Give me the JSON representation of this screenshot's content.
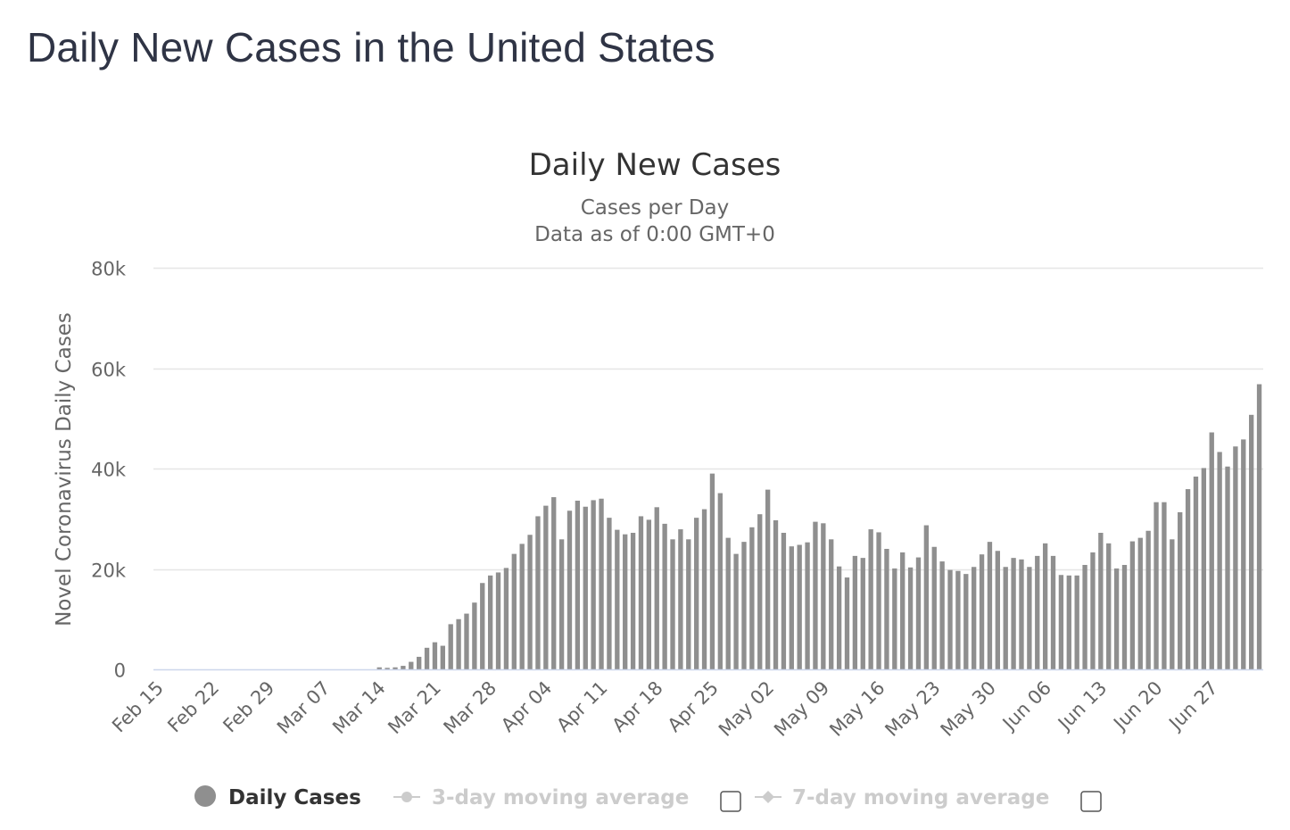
{
  "page": {
    "title": "Daily New Cases in the United States"
  },
  "colors": {
    "bar": "#8f8f8f",
    "grid": "#e6e6e6",
    "axis_line": "#ccd6eb",
    "text": "#333333",
    "muted": "#666666",
    "legend_inactive": "#cccccc"
  },
  "chart_data": {
    "type": "bar",
    "title": "Daily New Cases",
    "subtitle_lines": [
      "Cases per Day",
      "Data as of 0:00 GMT+0"
    ],
    "xlabel": "",
    "ylabel": "Novel Coronavirus Daily Cases",
    "ylim": [
      0,
      80000
    ],
    "y_ticks": [
      0,
      20000,
      40000,
      60000,
      80000
    ],
    "y_tick_labels": [
      "0",
      "20k",
      "40k",
      "60k",
      "80k"
    ],
    "x_tick_labels": [
      "Feb 15",
      "Feb 22",
      "Feb 29",
      "Mar 07",
      "Mar 14",
      "Mar 21",
      "Mar 28",
      "Apr 04",
      "Apr 11",
      "Apr 18",
      "Apr 25",
      "May 02",
      "May 09",
      "May 16",
      "May 23",
      "May 30",
      "Jun 06",
      "Jun 13",
      "Jun 20",
      "Jun 27"
    ],
    "x_tick_step_days": 7,
    "first_category": "Feb 15",
    "last_category": "Jul 02",
    "series": [
      {
        "name": "Daily Cases",
        "values": [
          0,
          0,
          0,
          0,
          0,
          0,
          0,
          0,
          0,
          0,
          0,
          0,
          0,
          0,
          0,
          0,
          0,
          0,
          0,
          0,
          0,
          0,
          0,
          0,
          0,
          0,
          0,
          0,
          400,
          300,
          400,
          700,
          1500,
          2500,
          4300,
          5400,
          4700,
          9000,
          10000,
          11100,
          13300,
          17200,
          18700,
          19300,
          20200,
          23000,
          25000,
          26800,
          30500,
          32600,
          34300,
          25900,
          31600,
          33600,
          32400,
          33700,
          34000,
          30200,
          27800,
          26900,
          27200,
          30500,
          29800,
          32300,
          29000,
          25900,
          27900,
          25900,
          30200,
          31900,
          39000,
          35100,
          26200,
          23000,
          25400,
          28300,
          30900,
          35800,
          29700,
          27200,
          24500,
          24800,
          25300,
          29400,
          29100,
          25900,
          20500,
          18300,
          22600,
          22200,
          27900,
          27300,
          24000,
          20100,
          23300,
          20300,
          22300,
          28700,
          24400,
          21500,
          19800,
          19600,
          19000,
          20400,
          22900,
          25400,
          23600,
          20400,
          22200,
          21900,
          20400,
          22600,
          25100,
          22600,
          18800,
          18700,
          18700,
          20800,
          23300,
          27200,
          25100,
          20100,
          20800,
          25500,
          26200,
          27600,
          33300,
          33300,
          25900,
          31300,
          35900,
          38400,
          40100,
          47200,
          43300,
          40400,
          44400,
          45800,
          50700,
          56800
        ]
      }
    ],
    "legend": [
      {
        "name": "Daily Cases",
        "active": true
      },
      {
        "name": "3-day moving average",
        "active": false
      },
      {
        "name": "7-day moving average",
        "active": false
      }
    ]
  }
}
